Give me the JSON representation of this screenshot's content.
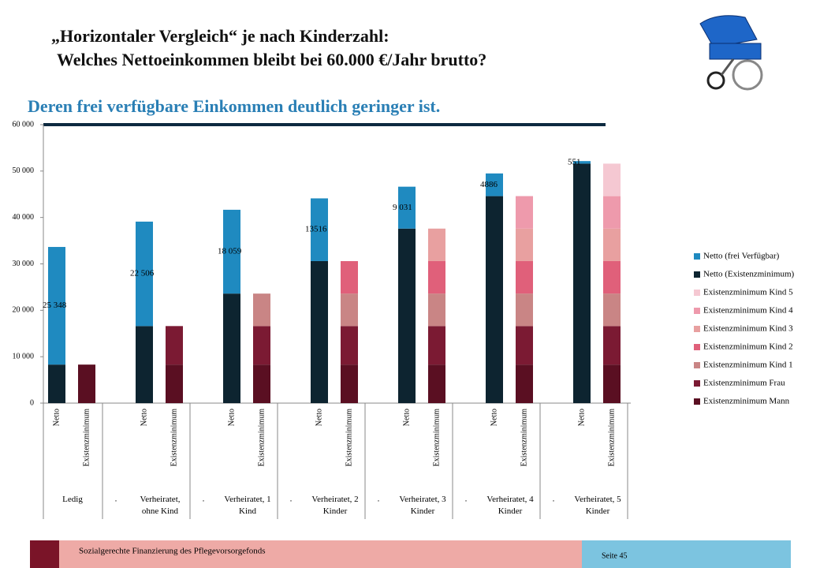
{
  "header": {
    "title_line1": "„Horizontaler Vergleich“ je nach Kinderzahl:",
    "title_line2": "Welches Nettoeinkommen bleibt bei 60.000 €/Jahr brutto?",
    "subtitle": "Deren frei verfügbare Einkommen deutlich geringer ist."
  },
  "chart_data": {
    "type": "stacked-bar",
    "categories": [
      "Netto",
      "Existenzminimum",
      "Netto",
      "Existenzminimum",
      "Netto",
      "Existenzminimum",
      "Netto",
      "Existenzminimum",
      "Netto",
      "Existenzminimum",
      "Netto",
      "Existenzminimum",
      "Netto",
      "Existenzminimum"
    ],
    "groups": [
      "Ledig",
      "Verheiratet, ohne Kind",
      "Verheiratet, 1 Kind",
      "Verheiratet, 2 Kinder",
      "Verheiratet, 3 Kinder",
      "Verheiratet, 4 Kinder",
      "Verheiratet, 5 Kinder"
    ],
    "separators": [
      ".",
      ".",
      ".",
      ".",
      ".",
      "."
    ],
    "series": [
      {
        "name": "Netto (frei Verfügbar)",
        "color": "#1f8ac0",
        "values": [
          25348,
          null,
          22506,
          null,
          18059,
          null,
          13516,
          null,
          9031,
          null,
          4886,
          null,
          551,
          null
        ],
        "value_labels": [
          "25 348",
          null,
          "22 506",
          null,
          "18 059",
          null,
          "13516",
          null,
          "9 031",
          null,
          "4886",
          null,
          "551",
          null
        ]
      },
      {
        "name": "Netto (Existenzminimum)",
        "color": "#0d2430",
        "values": [
          8300,
          null,
          16600,
          null,
          23600,
          null,
          30600,
          null,
          37600,
          null,
          44600,
          null,
          51600,
          null
        ]
      },
      {
        "name": "Existenzminimum Kind 5",
        "color": "#f5c8d2",
        "values": [
          null,
          null,
          null,
          null,
          null,
          null,
          null,
          null,
          null,
          null,
          null,
          null,
          null,
          7000
        ]
      },
      {
        "name": "Existenzminimum Kind 4",
        "color": "#ee9aac",
        "values": [
          null,
          null,
          null,
          null,
          null,
          null,
          null,
          null,
          null,
          null,
          null,
          7000,
          null,
          7000
        ]
      },
      {
        "name": "Existenzminimum Kind 3",
        "color": "#e8a0a0",
        "values": [
          null,
          null,
          null,
          null,
          null,
          null,
          null,
          null,
          null,
          7000,
          null,
          7000,
          null,
          7000
        ]
      },
      {
        "name": "Existenzminimum Kind 2",
        "color": "#e0607a",
        "values": [
          null,
          null,
          null,
          null,
          null,
          null,
          null,
          7000,
          null,
          7000,
          null,
          7000,
          null,
          7000
        ]
      },
      {
        "name": "Existenzminimum Kind 1",
        "color": "#c98585",
        "values": [
          null,
          null,
          null,
          null,
          null,
          7000,
          null,
          7000,
          null,
          7000,
          null,
          7000,
          null,
          7000
        ]
      },
      {
        "name": "Existenzminimum Frau",
        "color": "#7b1a33",
        "values": [
          null,
          null,
          null,
          8300,
          null,
          8300,
          null,
          8300,
          null,
          8300,
          null,
          8300,
          null,
          8300
        ]
      },
      {
        "name": "Existenzminimum Mann",
        "color": "#5a0f22",
        "values": [
          null,
          8300,
          null,
          8300,
          null,
          8300,
          null,
          8300,
          null,
          8300,
          null,
          8300,
          null,
          8300
        ]
      }
    ],
    "ylim": [
      0,
      60000
    ],
    "yticks": [
      0,
      {
        "value": 10000,
        "label": "10 000"
      },
      {
        "value": 20000,
        "label": "20 000"
      },
      {
        "value": 30000,
        "label": "30 000"
      },
      {
        "value": 40000,
        "label": "40 000"
      },
      {
        "value": 50000,
        "label": "50 000"
      },
      {
        "value": 60000,
        "label": "60 000"
      }
    ],
    "legend": "right"
  },
  "footer": {
    "text": "Sozialgerechte Finanzierung des Pflegevorsorgefonds",
    "page": "Seite 45"
  }
}
